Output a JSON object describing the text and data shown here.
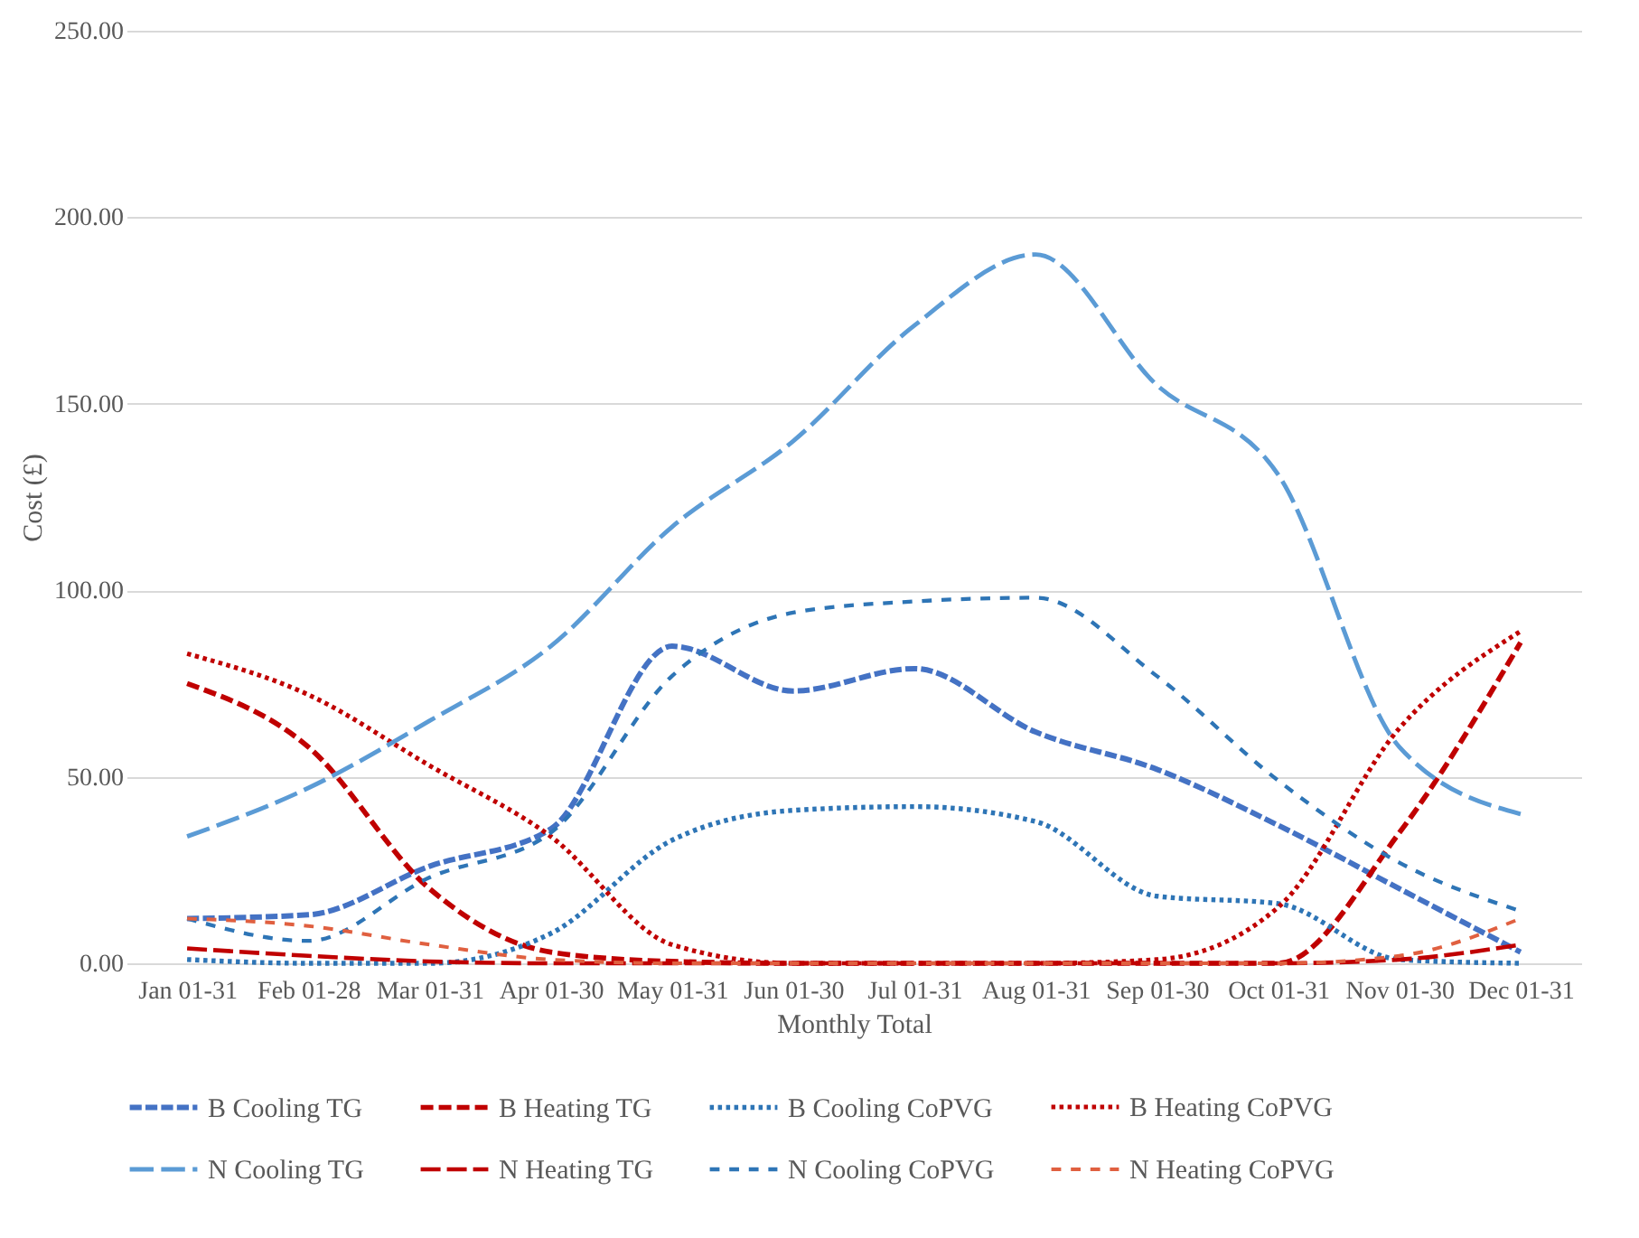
{
  "chart_data": {
    "type": "line",
    "xlabel": "Monthly Total",
    "ylabel": "Cost (£)",
    "categories": [
      "Jan 01-31",
      "Feb 01-28",
      "Mar 01-31",
      "Apr 01-30",
      "May 01-31",
      "Jun 01-30",
      "Jul 01-31",
      "Aug 01-31",
      "Sep 01-30",
      "Oct 01-31",
      "Nov 01-30",
      "Dec 01-31"
    ],
    "ylim": [
      0,
      250
    ],
    "yticks": [
      {
        "value": 0,
        "label": "0.00"
      },
      {
        "value": 50,
        "label": "50.00"
      },
      {
        "value": 100,
        "label": "100.00"
      },
      {
        "value": 150,
        "label": "150.00"
      },
      {
        "value": 200,
        "label": "200.00"
      },
      {
        "value": 250,
        "label": "250.00"
      }
    ],
    "grid": "y",
    "legend": "bottom",
    "marker": "none",
    "series": [
      {
        "name": "B Cooling TG",
        "color": "#4472c4",
        "line_style": "dashed",
        "values": [
          12,
          13,
          26,
          36,
          85,
          73,
          79,
          62,
          52,
          37,
          20,
          3
        ]
      },
      {
        "name": "B Heating TG",
        "color": "#c00000",
        "line_style": "dashed",
        "values": [
          75,
          58,
          20,
          3,
          0.5,
          0,
          0,
          0,
          0,
          0,
          35,
          86
        ]
      },
      {
        "name": "B Cooling CoPVG",
        "color": "#2e75b6",
        "line_style": "dotted",
        "values": [
          1,
          0,
          0,
          8,
          33,
          41,
          42,
          38,
          18,
          16,
          1,
          0
        ]
      },
      {
        "name": "B Heating CoPVG",
        "color": "#c00000",
        "line_style": "dotted",
        "values": [
          83,
          72,
          53,
          34,
          5,
          0,
          0,
          0,
          1,
          15,
          63,
          89
        ]
      },
      {
        "name": "N Cooling TG",
        "color": "#5b9bd5",
        "line_style": "dashed",
        "values": [
          34,
          47,
          65,
          85,
          117,
          140,
          171,
          190,
          155,
          131,
          58,
          40
        ]
      },
      {
        "name": "N Heating TG",
        "color": "#c00000",
        "line_style": "dashed",
        "values": [
          4,
          2,
          0.5,
          0,
          0,
          0,
          0,
          0,
          0,
          0,
          1,
          5
        ]
      },
      {
        "name": "N Cooling CoPVG",
        "color": "#2e75b6",
        "line_style": "dotted",
        "values": [
          12,
          6,
          23,
          35,
          77,
          94,
          97,
          98,
          77,
          49,
          27,
          14
        ]
      },
      {
        "name": "N Heating CoPVG",
        "color": "#e06040",
        "line_style": "dotted",
        "values": [
          12,
          10,
          5,
          1,
          0,
          0,
          0,
          0,
          0,
          0,
          2,
          12
        ]
      }
    ]
  }
}
